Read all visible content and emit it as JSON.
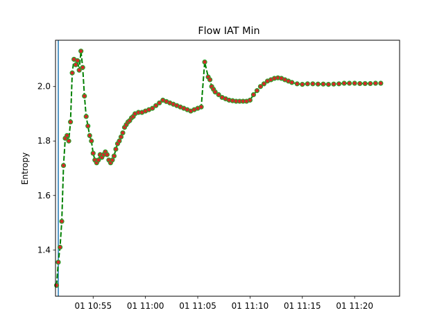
{
  "chart_data": {
    "type": "line",
    "title": "Flow IAT Min",
    "xlabel": "",
    "ylabel": "Entropy",
    "x_ticks": [
      "01 10:55",
      "01 11:00",
      "01 11:05",
      "01 11:10",
      "01 11:15",
      "01 11:20"
    ],
    "y_ticks": [
      "1.4",
      "1.6",
      "1.8",
      "2.0"
    ],
    "xlim": [
      "10:51:24",
      "11:24:18"
    ],
    "ylim": [
      1.23,
      2.17
    ],
    "grid": false,
    "vertical_marker": {
      "x": "10:51:40",
      "color": "#1f77b4"
    },
    "series": [
      {
        "line_color": "#008000",
        "line_style": "dashed",
        "marker_face": "#d62728",
        "marker_edge": "#2ca02c",
        "x": [
          "10:51:30",
          "10:51:40",
          "10:51:50",
          "10:52:00",
          "10:52:10",
          "10:52:20",
          "10:52:30",
          "10:52:40",
          "10:52:50",
          "10:53:00",
          "10:53:10",
          "10:53:20",
          "10:53:30",
          "10:53:40",
          "10:53:50",
          "10:54:00",
          "10:54:10",
          "10:54:20",
          "10:54:30",
          "10:54:40",
          "10:54:50",
          "10:55:00",
          "10:55:10",
          "10:55:20",
          "10:55:30",
          "10:55:40",
          "10:55:50",
          "10:56:00",
          "10:56:10",
          "10:56:20",
          "10:56:30",
          "10:56:40",
          "10:56:50",
          "10:57:00",
          "10:57:10",
          "10:57:20",
          "10:57:30",
          "10:57:40",
          "10:57:50",
          "10:58:00",
          "10:58:10",
          "10:58:20",
          "10:58:30",
          "10:58:40",
          "10:58:50",
          "10:59:00",
          "10:59:20",
          "10:59:40",
          "11:00:00",
          "11:00:20",
          "11:00:40",
          "11:01:00",
          "11:01:20",
          "11:01:40",
          "11:02:00",
          "11:02:20",
          "11:02:40",
          "11:03:00",
          "11:03:20",
          "11:03:40",
          "11:04:00",
          "11:04:20",
          "11:04:40",
          "11:05:00",
          "11:05:20",
          "11:05:40",
          "11:06:00",
          "11:06:10",
          "11:06:20",
          "11:06:30",
          "11:06:40",
          "11:07:00",
          "11:07:20",
          "11:07:40",
          "11:08:00",
          "11:08:20",
          "11:08:40",
          "11:09:00",
          "11:09:20",
          "11:09:40",
          "11:10:00",
          "11:10:20",
          "11:10:40",
          "11:11:00",
          "11:11:20",
          "11:11:40",
          "11:12:00",
          "11:12:20",
          "11:12:40",
          "11:13:00",
          "11:13:20",
          "11:13:40",
          "11:14:00",
          "11:14:30",
          "11:15:00",
          "11:15:30",
          "11:16:00",
          "11:16:30",
          "11:17:00",
          "11:17:30",
          "11:18:00",
          "11:18:30",
          "11:19:00",
          "11:19:30",
          "11:20:00",
          "11:20:30",
          "11:21:00",
          "11:21:30",
          "11:22:00",
          "11:22:30"
        ],
        "values": [
          1.27,
          1.355,
          1.41,
          1.505,
          1.71,
          1.81,
          1.82,
          1.8,
          1.87,
          2.05,
          2.1,
          2.08,
          2.095,
          2.06,
          2.13,
          2.07,
          1.965,
          1.89,
          1.855,
          1.82,
          1.8,
          1.755,
          1.73,
          1.72,
          1.73,
          1.75,
          1.74,
          1.75,
          1.76,
          1.75,
          1.73,
          1.72,
          1.73,
          1.745,
          1.77,
          1.79,
          1.8,
          1.815,
          1.83,
          1.85,
          1.86,
          1.87,
          1.875,
          1.885,
          1.89,
          1.9,
          1.905,
          1.905,
          1.91,
          1.915,
          1.92,
          1.93,
          1.94,
          1.95,
          1.945,
          1.94,
          1.935,
          1.93,
          1.925,
          1.92,
          1.915,
          1.91,
          1.915,
          1.92,
          1.925,
          2.09,
          2.035,
          2.025,
          2.0,
          1.99,
          1.98,
          1.97,
          1.96,
          1.955,
          1.95,
          1.948,
          1.946,
          1.946,
          1.946,
          1.946,
          1.95,
          1.97,
          1.985,
          2.0,
          2.01,
          2.02,
          2.025,
          2.03,
          2.032,
          2.03,
          2.025,
          2.02,
          2.015,
          2.01,
          2.008,
          2.01,
          2.01,
          2.009,
          2.009,
          2.008,
          2.009,
          2.01,
          2.012,
          2.012,
          2.012,
          2.011,
          2.011,
          2.011,
          2.012,
          2.012
        ]
      }
    ]
  }
}
